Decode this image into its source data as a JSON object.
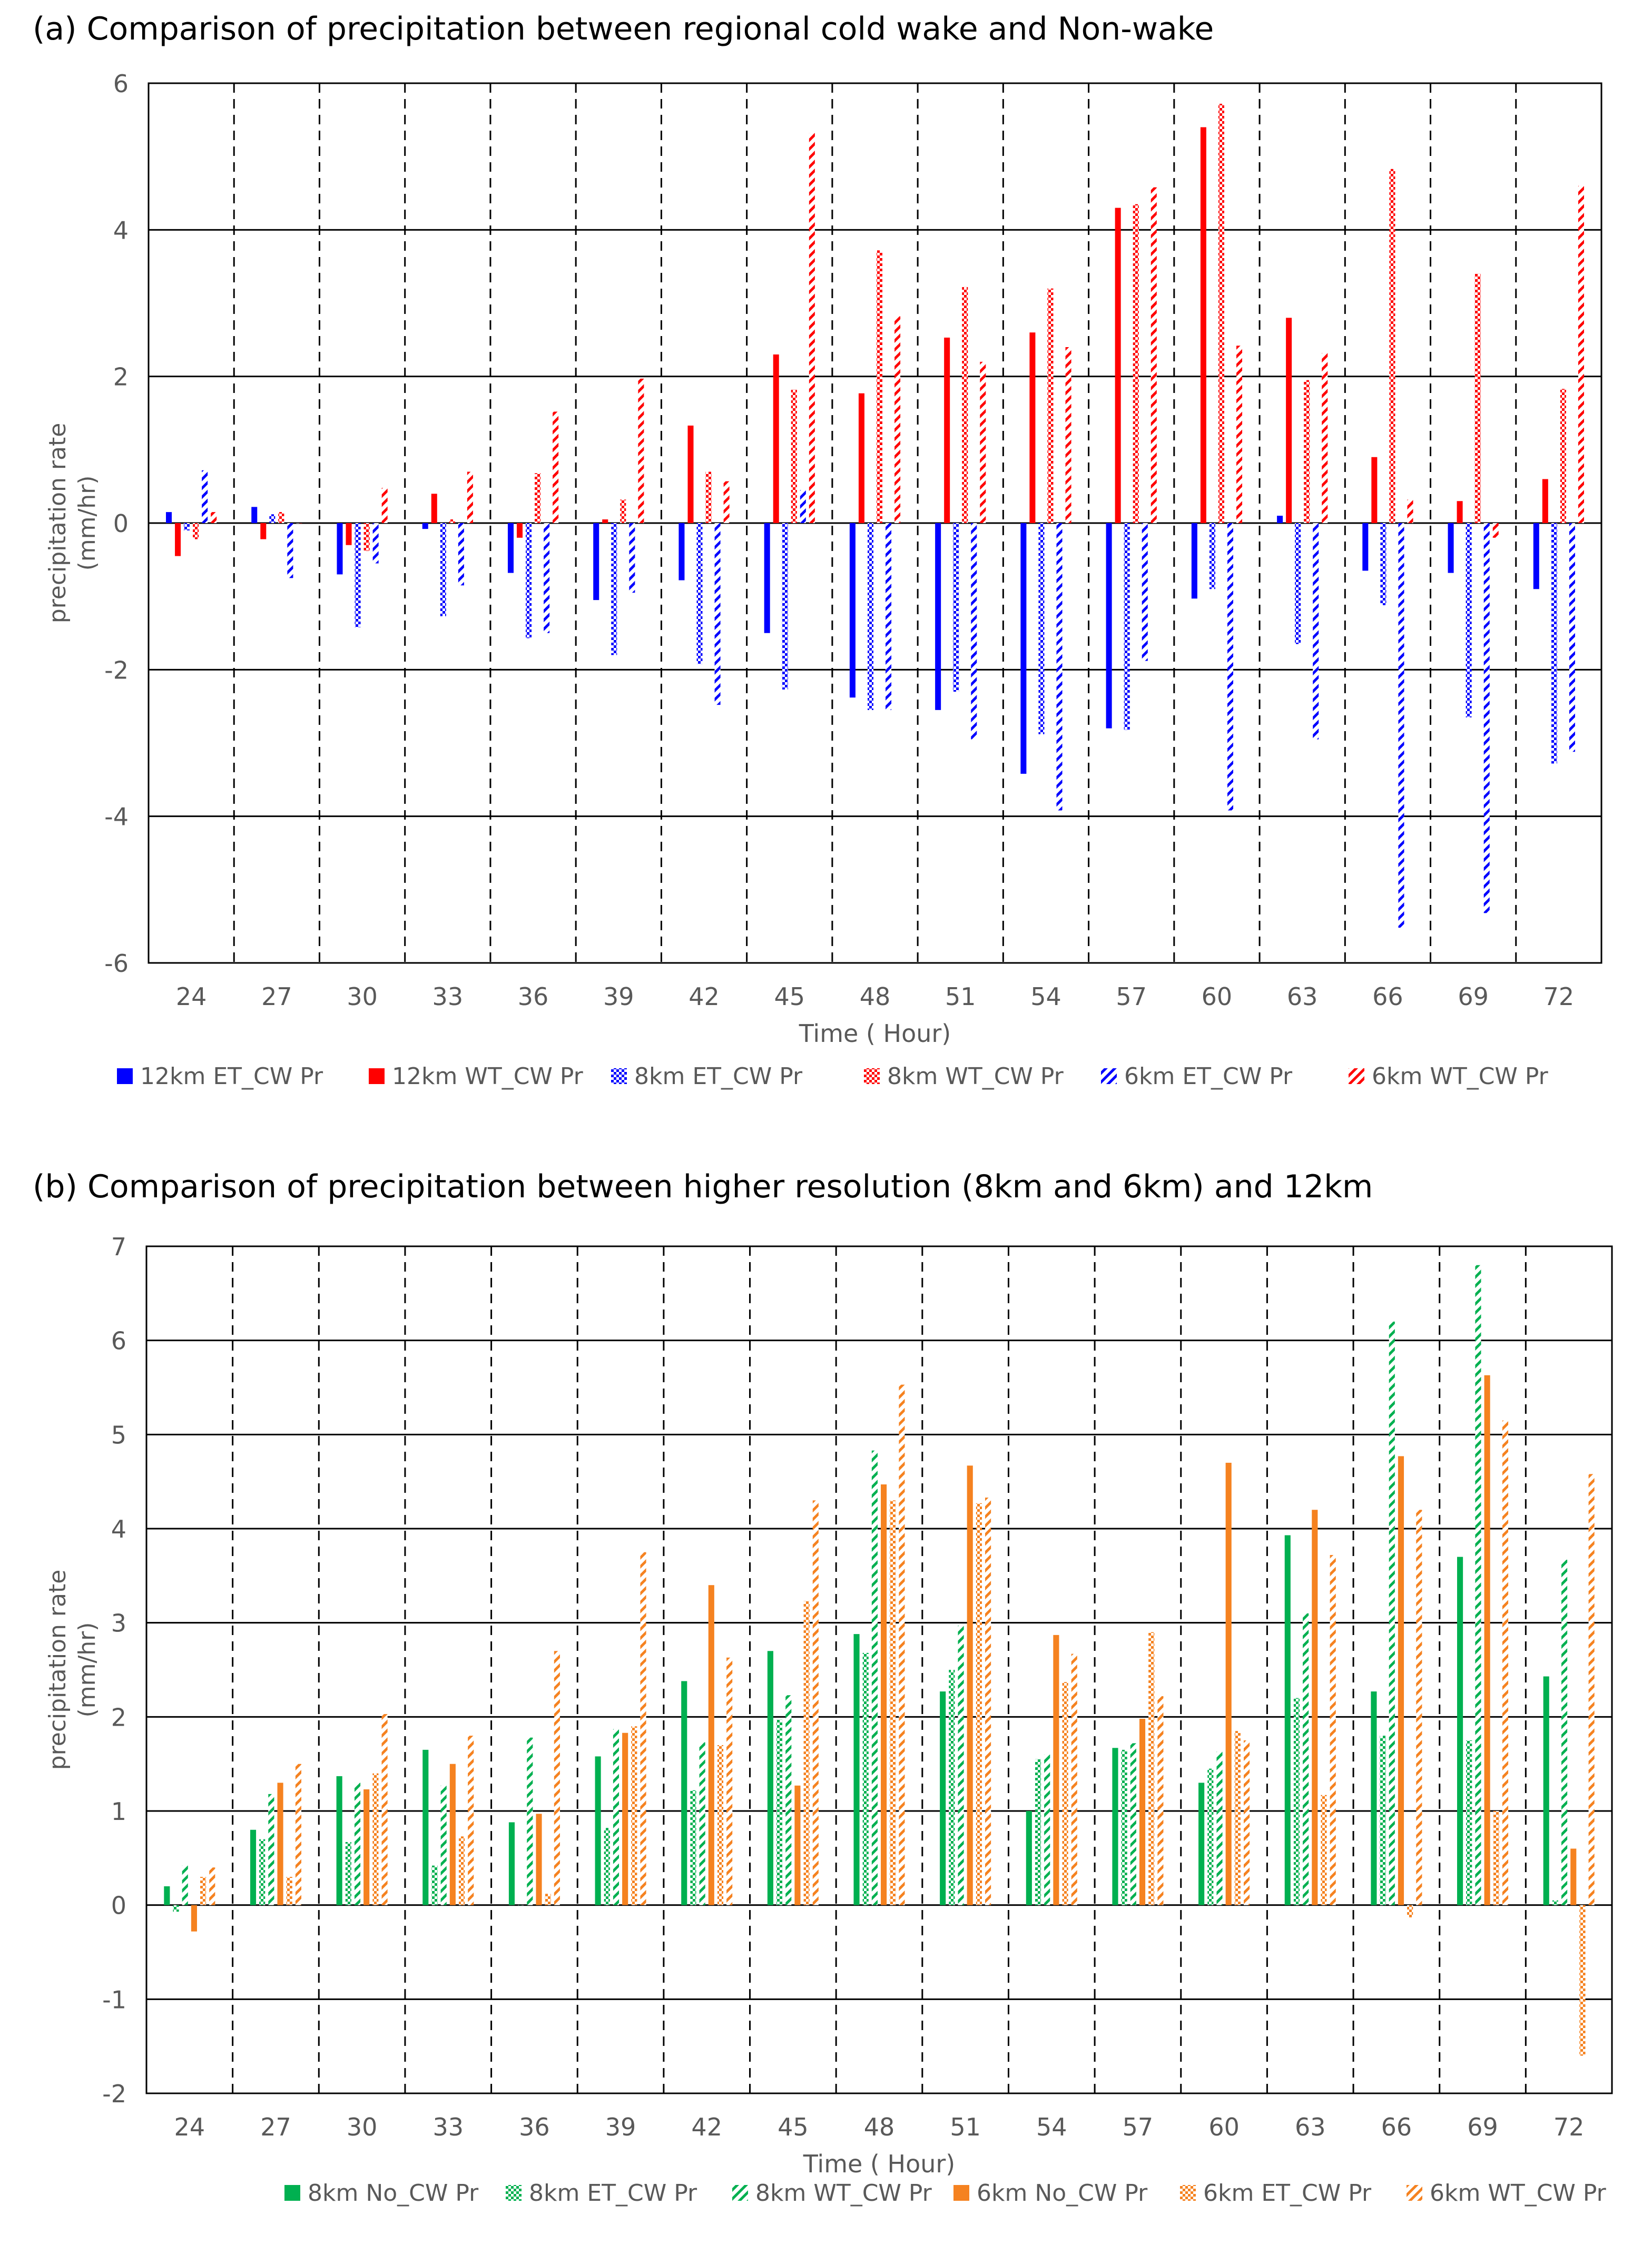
{
  "chart_data": [
    {
      "type": "bar",
      "title": "(a) Comparison of precipitation between regional cold wake and Non-wake",
      "xlabel": "Time ( Hour)",
      "ylabel": "precipitation rate (mm/hr)",
      "ylim": [
        -6,
        6
      ],
      "yticks": [
        -6,
        -4,
        -2,
        0,
        2,
        4,
        6
      ],
      "grid": "horizontal solid, vertical dashed between groups",
      "legend": "bottom",
      "categories": [
        "24",
        "27",
        "30",
        "33",
        "36",
        "39",
        "42",
        "45",
        "48",
        "51",
        "54",
        "57",
        "60",
        "63",
        "66",
        "69",
        "72"
      ],
      "series": [
        {
          "name": "12km ET_CW Pr",
          "color": "#0000FF",
          "pattern": "solid",
          "values": [
            0.15,
            0.22,
            -0.7,
            -0.08,
            -0.68,
            -1.05,
            -0.78,
            -1.5,
            -2.38,
            -2.55,
            -3.42,
            -2.8,
            -1.03,
            0.1,
            -0.65,
            -0.68,
            -0.9
          ]
        },
        {
          "name": "12km WT_CW Pr",
          "color": "#FF0000",
          "pattern": "solid",
          "values": [
            -0.45,
            -0.22,
            -0.3,
            0.4,
            -0.2,
            0.05,
            1.33,
            2.3,
            1.77,
            2.53,
            2.6,
            4.3,
            5.4,
            2.8,
            0.9,
            0.3,
            0.6
          ]
        },
        {
          "name": "8km ET_CW Pr",
          "color": "#0000FF",
          "pattern": "checker",
          "values": [
            -0.1,
            0.12,
            -1.42,
            -1.27,
            -1.57,
            -1.8,
            -1.92,
            -2.27,
            -2.55,
            -2.3,
            -2.88,
            -2.82,
            -0.9,
            -1.65,
            -1.12,
            -2.65,
            -3.28
          ]
        },
        {
          "name": "8km WT_CW Pr",
          "color": "#FF0000",
          "pattern": "checker",
          "values": [
            -0.22,
            0.15,
            -0.38,
            0.05,
            0.68,
            0.32,
            0.7,
            1.82,
            3.72,
            3.22,
            3.2,
            4.35,
            5.72,
            1.95,
            4.83,
            3.4,
            1.83
          ]
        },
        {
          "name": "6km ET_CW Pr",
          "color": "#0000FF",
          "pattern": "diagonal",
          "values": [
            0.72,
            -0.75,
            -0.55,
            -0.85,
            -1.5,
            -0.95,
            -2.48,
            0.45,
            -2.55,
            -2.95,
            -3.92,
            -1.88,
            -3.92,
            -2.95,
            -5.52,
            -5.32,
            -3.12
          ]
        },
        {
          "name": "6km WT_CW Pr",
          "color": "#FF0000",
          "pattern": "diagonal",
          "values": [
            0.15,
            0.0,
            0.48,
            0.7,
            1.52,
            1.97,
            0.57,
            5.32,
            2.82,
            2.2,
            2.4,
            4.58,
            2.42,
            2.32,
            0.32,
            -0.2,
            4.6
          ]
        }
      ]
    },
    {
      "type": "bar",
      "title": "(b) Comparison of precipitation between higher resolution (8km and 6km) and 12km",
      "xlabel": "Time ( Hour)",
      "ylabel": "precipitation rate (mm/hr)",
      "ylim": [
        -2,
        7
      ],
      "yticks": [
        -2,
        -1,
        0,
        1,
        2,
        3,
        4,
        5,
        6,
        7
      ],
      "grid": "horizontal solid, vertical dashed between groups",
      "legend": "bottom",
      "categories": [
        "24",
        "27",
        "30",
        "33",
        "36",
        "39",
        "42",
        "45",
        "48",
        "51",
        "54",
        "57",
        "60",
        "63",
        "66",
        "69",
        "72"
      ],
      "series": [
        {
          "name": "8km No_CW Pr",
          "color": "#00B050",
          "pattern": "solid",
          "values": [
            0.2,
            0.8,
            1.37,
            1.65,
            0.88,
            1.58,
            2.38,
            2.7,
            2.88,
            2.27,
            1.0,
            1.67,
            1.3,
            3.93,
            2.27,
            3.7,
            2.43
          ]
        },
        {
          "name": "8km ET_CW Pr",
          "color": "#00B050",
          "pattern": "checker",
          "values": [
            -0.07,
            0.7,
            0.67,
            0.42,
            0.0,
            0.82,
            1.22,
            1.97,
            2.68,
            2.5,
            1.55,
            1.65,
            1.45,
            2.2,
            1.8,
            1.75,
            0.05
          ]
        },
        {
          "name": "8km WT_CW Pr",
          "color": "#00B050",
          "pattern": "diagonal",
          "values": [
            0.42,
            1.18,
            1.3,
            1.27,
            1.78,
            1.87,
            1.73,
            2.23,
            4.83,
            2.97,
            1.6,
            1.72,
            1.63,
            3.1,
            6.2,
            6.8,
            3.67
          ]
        },
        {
          "name": "6km No_CW Pr",
          "color": "#F58220",
          "pattern": "solid",
          "values": [
            -0.28,
            1.3,
            1.23,
            1.5,
            0.97,
            1.83,
            3.4,
            1.27,
            4.47,
            4.67,
            2.87,
            1.98,
            4.7,
            4.2,
            4.77,
            5.63,
            0.6
          ]
        },
        {
          "name": "6km ET_CW Pr",
          "color": "#F58220",
          "pattern": "checker",
          "values": [
            0.3,
            0.3,
            1.4,
            0.73,
            0.12,
            1.9,
            1.7,
            3.23,
            4.3,
            4.27,
            2.37,
            2.9,
            1.85,
            1.17,
            -0.13,
            1.0,
            -1.6
          ]
        },
        {
          "name": "6km WT_CW Pr",
          "color": "#F58220",
          "pattern": "diagonal",
          "values": [
            0.4,
            1.5,
            2.03,
            1.8,
            2.7,
            3.75,
            2.63,
            4.3,
            5.53,
            4.33,
            2.67,
            2.22,
            1.75,
            3.72,
            4.2,
            5.15,
            4.58
          ]
        }
      ]
    }
  ]
}
